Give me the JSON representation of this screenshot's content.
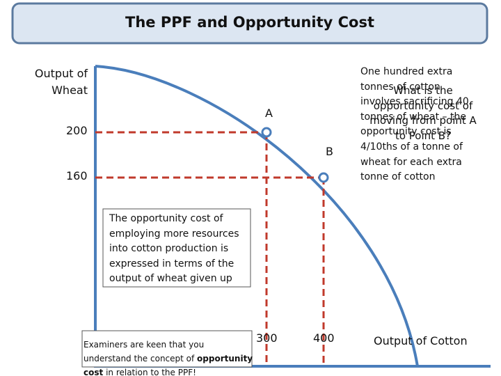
{
  "header": {
    "title": "The PPF and Opportunity Cost"
  },
  "axes": {
    "y_label": [
      "Output of",
      "Wheat"
    ],
    "x_label": "Output of Cotton",
    "y_ticks": [
      "200",
      "160"
    ],
    "x_ticks": [
      "300",
      "400"
    ]
  },
  "points": [
    {
      "label": "A"
    },
    {
      "label": "B"
    }
  ],
  "explanation": [
    "One hundred extra",
    "tonnes of cotton",
    "involves sacrificing 40",
    "tonnes of wheat – the",
    "opportunity cost is",
    "4/10ths of a tonne of",
    "wheat for each extra",
    "tonne of cotton"
  ],
  "question": [
    "What is the",
    "opportunity cost of",
    "moving from point A",
    "to Point B?"
  ],
  "middle_note": "The opportunity cost of employing more resources into cotton production is expressed in terms of the output of wheat given up",
  "bottom_note": [
    "Examiners are keen that you understand the concept of ",
    "opportunity cost",
    " in relation to the PPF!"
  ]
}
